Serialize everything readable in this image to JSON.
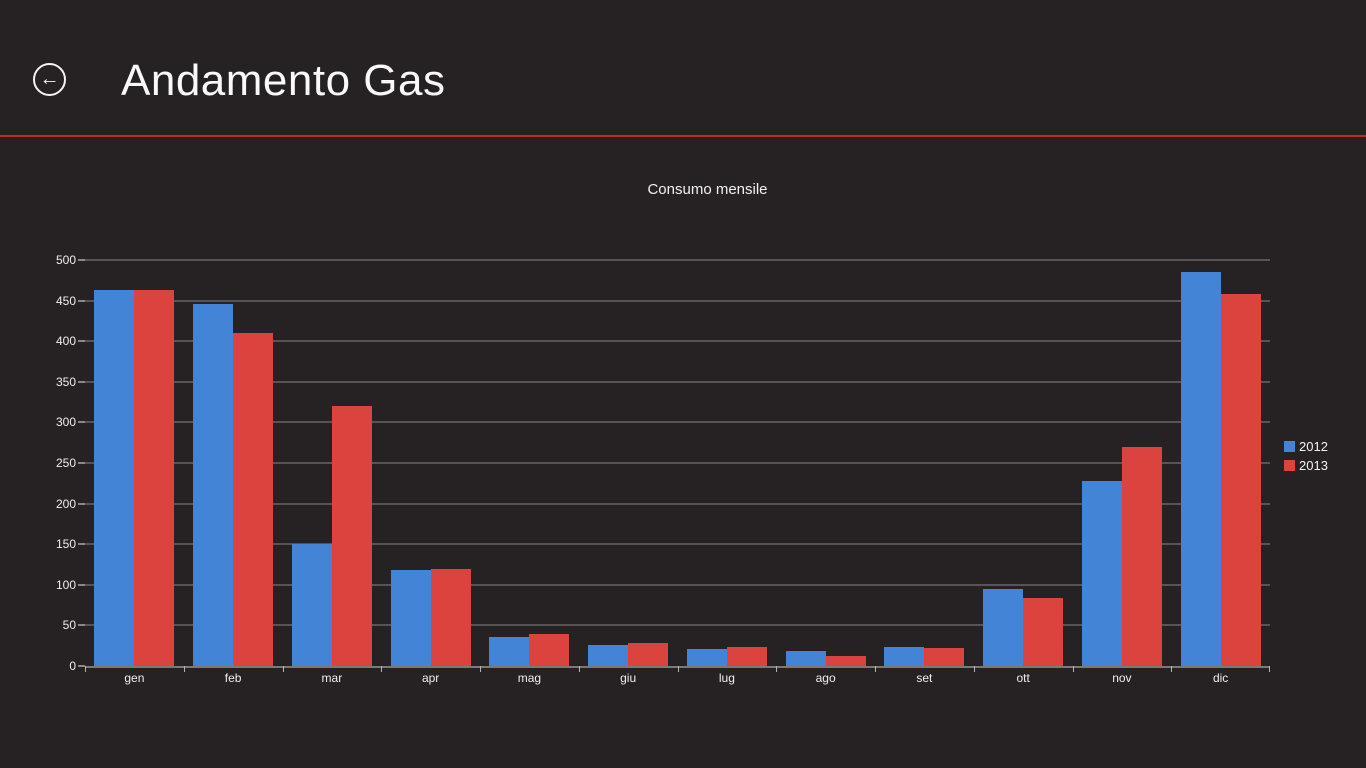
{
  "header": {
    "title": "Andamento Gas",
    "back_icon_glyph": "←"
  },
  "divider_color": "#c42a1c",
  "chart_data": {
    "type": "bar",
    "title": "Consumo mensile",
    "categories": [
      "gen",
      "feb",
      "mar",
      "apr",
      "mag",
      "giu",
      "lug",
      "ago",
      "set",
      "ott",
      "nov",
      "dic"
    ],
    "series": [
      {
        "name": "2012",
        "color": "#4484d7",
        "values": [
          463,
          446,
          150,
          118,
          36,
          26,
          21,
          18,
          24,
          95,
          228,
          485
        ]
      },
      {
        "name": "2013",
        "color": "#db443e",
        "values": [
          463,
          410,
          320,
          120,
          40,
          28,
          23,
          12,
          22,
          84,
          270,
          458
        ]
      }
    ],
    "ylim": [
      0,
      500
    ],
    "yticks": [
      0,
      50,
      100,
      150,
      200,
      250,
      300,
      350,
      400,
      450,
      500
    ],
    "grid": true,
    "legend_position": "right"
  }
}
